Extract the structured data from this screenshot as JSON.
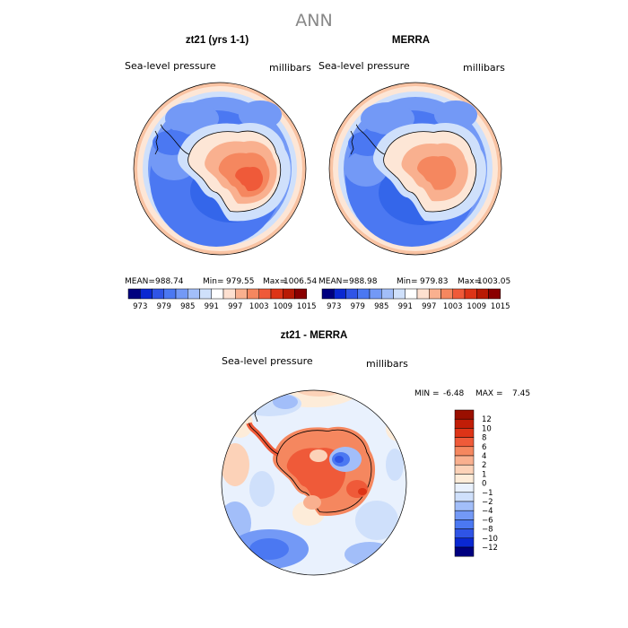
{
  "page": {
    "title": "ANN"
  },
  "colors": {
    "negative": [
      "#00007f",
      "#0000b7",
      "#0a28d2",
      "#2f54e6",
      "#4b78f2",
      "#7399f6",
      "#a2bef9",
      "#cfe0fb",
      "#e9f1fd"
    ],
    "positive": [
      "#fdecd9",
      "#fcd2b8",
      "#f9b08f",
      "#f5875f",
      "#ef5a39",
      "#dd3417",
      "#c11d07",
      "#9a0f00",
      "#7a0000"
    ]
  },
  "chart_data": [
    {
      "type": "heatmap",
      "title": "zt21 (yrs 1-1)",
      "variable": "Sea-level pressure",
      "units": "millibars",
      "stats": {
        "mean_label": "MEAN=",
        "mean": "988.74",
        "min_label": "Min=",
        "min": "979.55",
        "max_label": "Max=",
        "max": "1006.54"
      },
      "colorbar_levels": [
        "973",
        "979",
        "985",
        "991",
        "997",
        "1003",
        "1009",
        "1015"
      ],
      "colorbar_colors": [
        "#00007f",
        "#0a28d2",
        "#2f54e6",
        "#4b78f2",
        "#7399f6",
        "#a2bef9",
        "#cfe0fb",
        "#ffffff",
        "#fde0d0",
        "#f9b08f",
        "#f5875f",
        "#ef5a39",
        "#dd3417",
        "#b81a04",
        "#8a0000"
      ],
      "field": {
        "ocean_min": 980,
        "ice_margin": 991,
        "interior_max": 1006.5
      }
    },
    {
      "type": "heatmap",
      "title": "MERRA",
      "variable": "Sea-level pressure",
      "units": "millibars",
      "stats": {
        "mean_label": "MEAN=",
        "mean": "988.98",
        "min_label": "Min=",
        "min": "979.83",
        "max_label": "Max=",
        "max": "1003.05"
      },
      "colorbar_levels": [
        "973",
        "979",
        "985",
        "991",
        "997",
        "1003",
        "1009",
        "1015"
      ],
      "colorbar_colors": [
        "#00007f",
        "#0a28d2",
        "#2f54e6",
        "#4b78f2",
        "#7399f6",
        "#a2bef9",
        "#cfe0fb",
        "#ffffff",
        "#fde0d0",
        "#f9b08f",
        "#f5875f",
        "#ef5a39",
        "#dd3417",
        "#b81a04",
        "#8a0000"
      ],
      "field": {
        "ocean_min": 980,
        "ice_margin": 991,
        "interior_max": 1003
      }
    },
    {
      "type": "heatmap",
      "title": "zt21 - MERRA",
      "variable": "Sea-level pressure",
      "units": "millibars",
      "min_label": "MIN =",
      "min": "-6.48",
      "max_label": "MAX =",
      "max": "7.45",
      "colorbar_levels": [
        "12",
        "10",
        "8",
        "6",
        "4",
        "2",
        "1",
        "0",
        "−1",
        "−2",
        "−4",
        "−6",
        "−8",
        "−10",
        "−12"
      ],
      "colorbar_colors": [
        "#9a0f00",
        "#c11d07",
        "#dd3417",
        "#ef5a39",
        "#f5875f",
        "#f9b08f",
        "#fcd2b8",
        "#fdecd9",
        "#e9f1fd",
        "#cfe0fb",
        "#a2bef9",
        "#7399f6",
        "#4b78f2",
        "#2f54e6",
        "#0a28d2",
        "#00007f"
      ]
    }
  ]
}
